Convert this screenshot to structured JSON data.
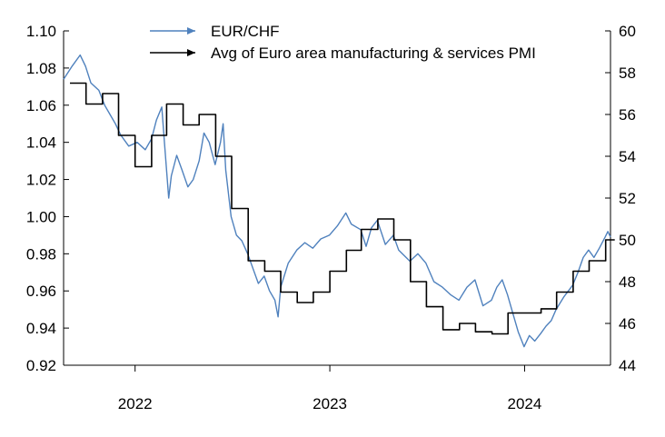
{
  "chart_data": {
    "type": "line",
    "title": "",
    "xlabel": "",
    "x_range": [
      "2021-08-20",
      "2024-06-10"
    ],
    "x_ticks": [
      {
        "label": "2022",
        "date": "2022-01-01"
      },
      {
        "label": "2023",
        "date": "2023-01-01"
      },
      {
        "label": "2024",
        "date": "2024-01-01"
      }
    ],
    "y_left": {
      "range": [
        0.92,
        1.1
      ],
      "ticks": [
        "0.92",
        "0.94",
        "0.96",
        "0.98",
        "1.00",
        "1.02",
        "1.04",
        "1.06",
        "1.08",
        "1.10"
      ]
    },
    "y_right": {
      "range": [
        44,
        60
      ],
      "ticks": [
        "44",
        "46",
        "48",
        "50",
        "52",
        "54",
        "56",
        "58",
        "60"
      ]
    },
    "legend_position": "top",
    "grid": false,
    "series": [
      {
        "name": "EUR/CHF",
        "axis": "left",
        "color": "#4f81bd",
        "style": "line",
        "points": [
          [
            "2021-08-20",
            1.074
          ],
          [
            "2021-09-05",
            1.081
          ],
          [
            "2021-09-20",
            1.087
          ],
          [
            "2021-09-30",
            1.081
          ],
          [
            "2021-10-10",
            1.072
          ],
          [
            "2021-10-25",
            1.068
          ],
          [
            "2021-11-05",
            1.06
          ],
          [
            "2021-11-15",
            1.055
          ],
          [
            "2021-11-25",
            1.05
          ],
          [
            "2021-12-05",
            1.044
          ],
          [
            "2021-12-20",
            1.038
          ],
          [
            "2022-01-05",
            1.04
          ],
          [
            "2022-01-20",
            1.036
          ],
          [
            "2022-02-01",
            1.042
          ],
          [
            "2022-02-10",
            1.052
          ],
          [
            "2022-02-20",
            1.059
          ],
          [
            "2022-02-25",
            1.04
          ],
          [
            "2022-03-05",
            1.01
          ],
          [
            "2022-03-10",
            1.022
          ],
          [
            "2022-03-20",
            1.033
          ],
          [
            "2022-03-30",
            1.025
          ],
          [
            "2022-04-10",
            1.016
          ],
          [
            "2022-04-20",
            1.02
          ],
          [
            "2022-05-01",
            1.03
          ],
          [
            "2022-05-10",
            1.045
          ],
          [
            "2022-05-20",
            1.04
          ],
          [
            "2022-05-31",
            1.028
          ],
          [
            "2022-06-10",
            1.04
          ],
          [
            "2022-06-15",
            1.05
          ],
          [
            "2022-06-20",
            1.025
          ],
          [
            "2022-06-30",
            1.0
          ],
          [
            "2022-07-10",
            0.99
          ],
          [
            "2022-07-20",
            0.987
          ],
          [
            "2022-07-31",
            0.98
          ],
          [
            "2022-08-10",
            0.972
          ],
          [
            "2022-08-20",
            0.964
          ],
          [
            "2022-08-31",
            0.968
          ],
          [
            "2022-09-10",
            0.96
          ],
          [
            "2022-09-20",
            0.955
          ],
          [
            "2022-09-26",
            0.946
          ],
          [
            "2022-10-01",
            0.962
          ],
          [
            "2022-10-15",
            0.975
          ],
          [
            "2022-10-31",
            0.982
          ],
          [
            "2022-11-15",
            0.986
          ],
          [
            "2022-11-30",
            0.983
          ],
          [
            "2022-12-15",
            0.988
          ],
          [
            "2022-12-31",
            0.99
          ],
          [
            "2023-01-15",
            0.995
          ],
          [
            "2023-01-31",
            1.002
          ],
          [
            "2023-02-10",
            0.996
          ],
          [
            "2023-02-28",
            0.993
          ],
          [
            "2023-03-10",
            0.984
          ],
          [
            "2023-03-20",
            0.994
          ],
          [
            "2023-03-31",
            0.998
          ],
          [
            "2023-04-15",
            0.985
          ],
          [
            "2023-04-30",
            0.99
          ],
          [
            "2023-05-10",
            0.982
          ],
          [
            "2023-05-31",
            0.976
          ],
          [
            "2023-06-15",
            0.98
          ],
          [
            "2023-06-30",
            0.975
          ],
          [
            "2023-07-15",
            0.965
          ],
          [
            "2023-07-31",
            0.962
          ],
          [
            "2023-08-15",
            0.958
          ],
          [
            "2023-08-31",
            0.955
          ],
          [
            "2023-09-15",
            0.962
          ],
          [
            "2023-09-30",
            0.966
          ],
          [
            "2023-10-15",
            0.952
          ],
          [
            "2023-10-31",
            0.955
          ],
          [
            "2023-11-10",
            0.962
          ],
          [
            "2023-11-20",
            0.966
          ],
          [
            "2023-11-30",
            0.958
          ],
          [
            "2023-12-10",
            0.948
          ],
          [
            "2023-12-20",
            0.938
          ],
          [
            "2023-12-31",
            0.93
          ],
          [
            "2024-01-10",
            0.936
          ],
          [
            "2024-01-20",
            0.933
          ],
          [
            "2024-01-31",
            0.937
          ],
          [
            "2024-02-10",
            0.941
          ],
          [
            "2024-02-20",
            0.944
          ],
          [
            "2024-02-29",
            0.95
          ],
          [
            "2024-03-15",
            0.957
          ],
          [
            "2024-03-31",
            0.963
          ],
          [
            "2024-04-10",
            0.97
          ],
          [
            "2024-04-20",
            0.978
          ],
          [
            "2024-04-30",
            0.982
          ],
          [
            "2024-05-10",
            0.978
          ],
          [
            "2024-05-20",
            0.983
          ],
          [
            "2024-05-31",
            0.989
          ],
          [
            "2024-06-05",
            0.992
          ],
          [
            "2024-06-10",
            0.989
          ]
        ]
      },
      {
        "name": "Avg of Euro area manufacturing & services PMI",
        "axis": "right",
        "color": "#000000",
        "style": "step",
        "points": [
          [
            "2021-09-01",
            57.5
          ],
          [
            "2021-10-01",
            56.5
          ],
          [
            "2021-11-01",
            57.0
          ],
          [
            "2021-12-01",
            55.0
          ],
          [
            "2022-01-01",
            53.5
          ],
          [
            "2022-02-01",
            55.0
          ],
          [
            "2022-03-01",
            56.5
          ],
          [
            "2022-04-01",
            55.5
          ],
          [
            "2022-05-01",
            56.0
          ],
          [
            "2022-06-01",
            54.0
          ],
          [
            "2022-07-01",
            51.5
          ],
          [
            "2022-08-01",
            49.0
          ],
          [
            "2022-09-01",
            48.5
          ],
          [
            "2022-10-01",
            47.5
          ],
          [
            "2022-11-01",
            47.0
          ],
          [
            "2022-12-01",
            47.5
          ],
          [
            "2023-01-01",
            48.5
          ],
          [
            "2023-02-01",
            49.5
          ],
          [
            "2023-03-01",
            50.5
          ],
          [
            "2023-04-01",
            51.0
          ],
          [
            "2023-05-01",
            50.0
          ],
          [
            "2023-06-01",
            48.0
          ],
          [
            "2023-07-01",
            46.8
          ],
          [
            "2023-08-01",
            45.7
          ],
          [
            "2023-09-01",
            46.0
          ],
          [
            "2023-10-01",
            45.6
          ],
          [
            "2023-11-01",
            45.5
          ],
          [
            "2023-12-01",
            46.5
          ],
          [
            "2024-01-01",
            46.5
          ],
          [
            "2024-02-01",
            46.7
          ],
          [
            "2024-03-01",
            47.5
          ],
          [
            "2024-04-01",
            48.5
          ],
          [
            "2024-05-01",
            49.0
          ],
          [
            "2024-06-01",
            50.0
          ]
        ]
      }
    ]
  }
}
